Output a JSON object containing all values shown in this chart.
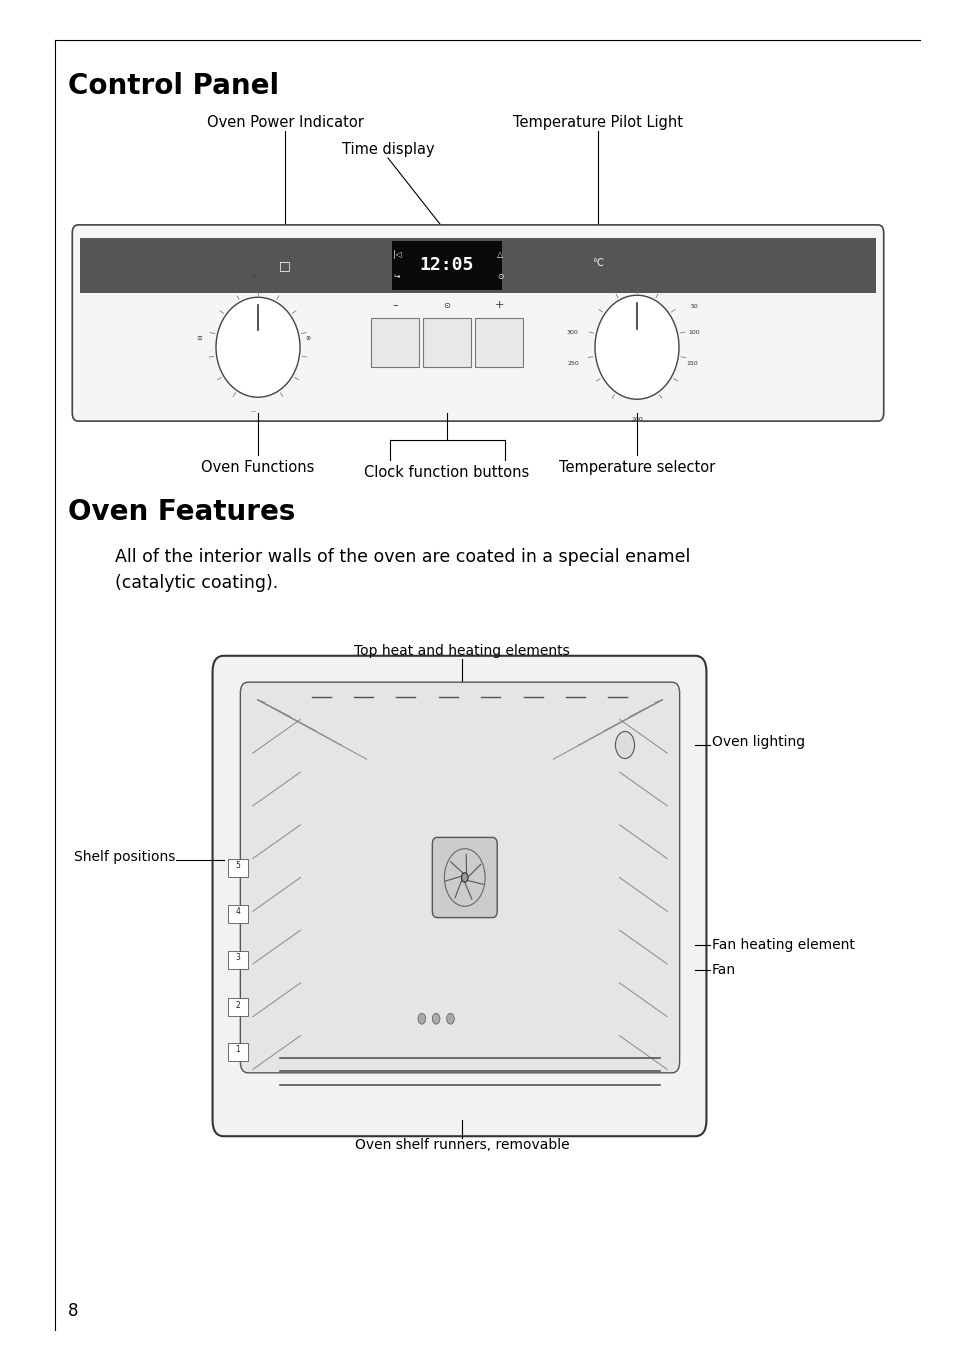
{
  "page_bg": "#ffffff",
  "title1": "Control Panel",
  "title2": "Oven Features",
  "title_fontsize": 20,
  "label_fontsize": 10.5,
  "small_label_fontsize": 10,
  "page_number": "8",
  "body_text": "All of the interior walls of the oven are coated in a special enamel\n(catalytic coating).",
  "dark_band_color": "#555555",
  "display_color": "#111111",
  "panel_bg": "#f5f5f5",
  "knob_color": "#ffffff"
}
